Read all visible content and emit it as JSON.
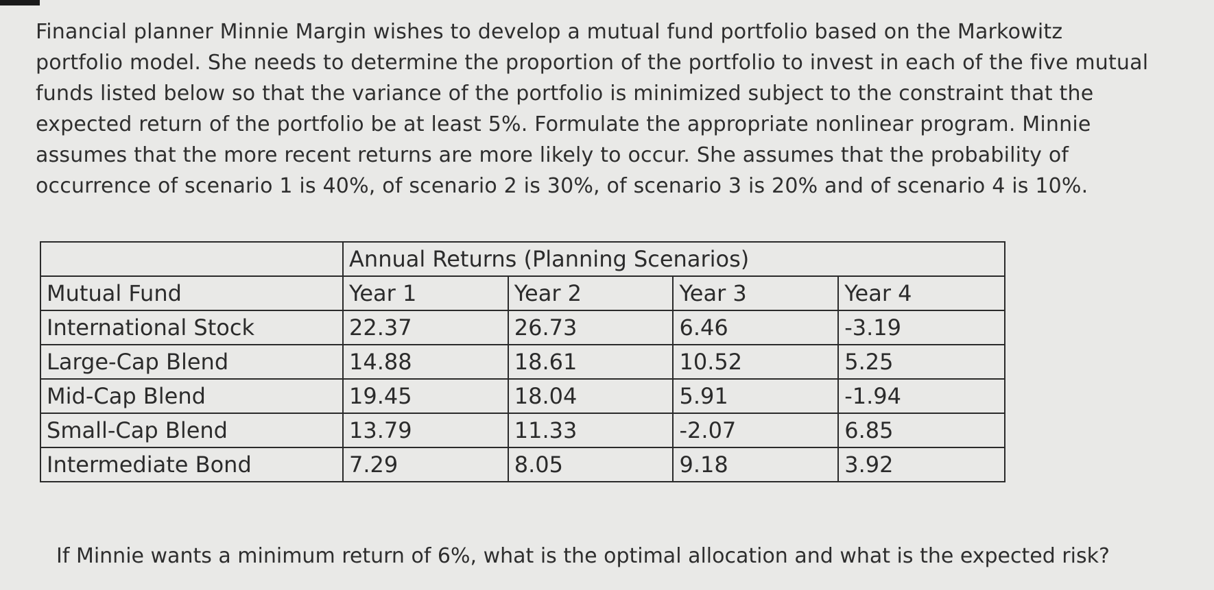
{
  "paragraph_lines": [
    "Financial planner Minnie Margin wishes to develop a mutual fund portfolio based on the Markowitz",
    "portfolio model. She needs to determine the proportion of the portfolio to invest in each of the five mutual",
    "funds listed below so that the variance of the portfolio is minimized subject to the constraint that the",
    "expected return of the portfolio be at least 5%. Formulate the appropriate nonlinear program. Minnie",
    "assumes that the more recent returns are more likely to occur. She assumes that the probability of",
    "occurrence of scenario 1 is 40%, of scenario 2 is 30%, of scenario 3 is 20% and of scenario 4 is 10%."
  ],
  "table": {
    "group_header": "Annual Returns (Planning Scenarios)",
    "headers": [
      "Mutual Fund",
      "Year 1",
      "Year 2",
      "Year 3",
      "Year 4"
    ],
    "rows": [
      [
        "International Stock",
        "22.37",
        "26.73",
        "6.46",
        "-3.19"
      ],
      [
        "Large-Cap Blend",
        "14.88",
        "18.61",
        "10.52",
        "5.25"
      ],
      [
        "Mid-Cap Blend",
        "19.45",
        "18.04",
        "5.91",
        "-1.94"
      ],
      [
        "Small-Cap Blend",
        "13.79",
        "11.33",
        "-2.07",
        "6.85"
      ],
      [
        "Intermediate Bond",
        "7.29",
        "8.05",
        "9.18",
        "3.92"
      ]
    ]
  },
  "question": "If Minnie wants a minimum return of 6%, what is the optimal allocation and what is the expected risk?"
}
